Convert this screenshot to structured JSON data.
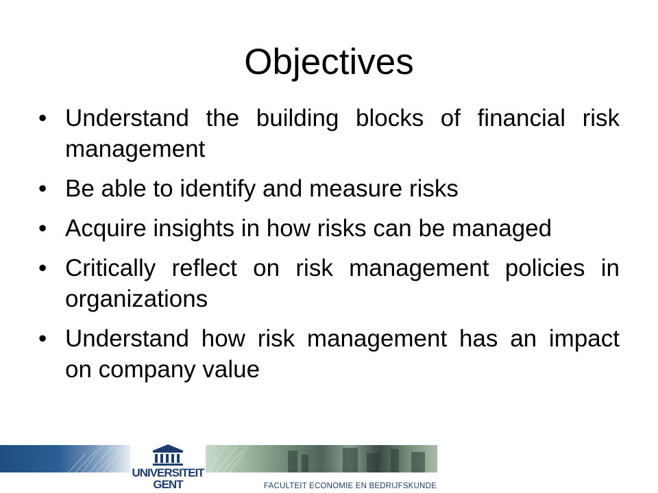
{
  "slide": {
    "title": "Objectives",
    "bullet_symbol": "•",
    "bullets": [
      "Understand the building blocks of financial risk management",
      "Be able to identify and measure risks",
      "Acquire insights in how risks can be managed",
      "Critically reflect on risk management policies in organizations",
      "Understand how risk management has an impact on company value"
    ]
  },
  "footer": {
    "university_line1": "UNIVERSITEIT",
    "university_line2": "GENT",
    "faculty": "FACULTEIT ECONOMIE EN BEDRIJFSKUNDE",
    "logo_icon": "university-building-icon",
    "brand_color": "#1d3d6e"
  }
}
